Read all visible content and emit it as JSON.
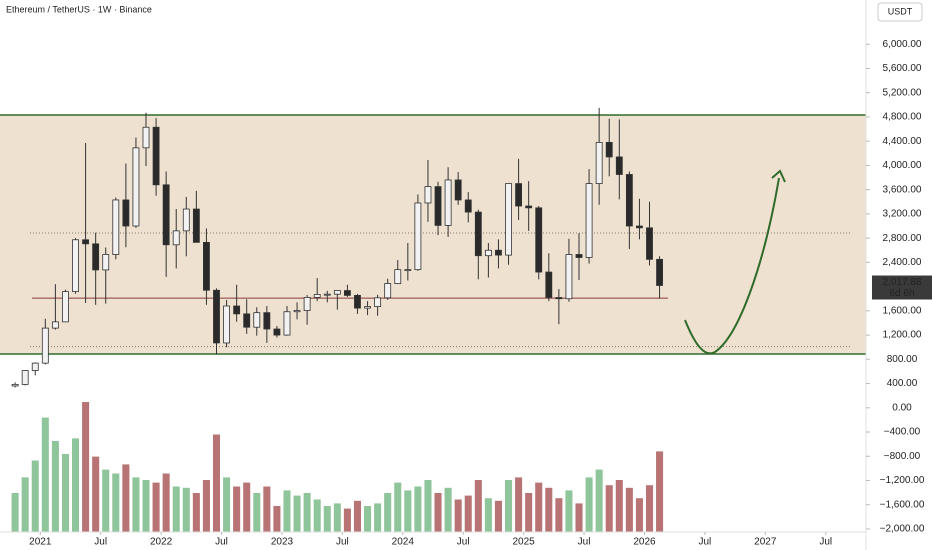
{
  "chart_data": {
    "type": "candlestick",
    "title": "Ethereum / TetherUS · 1W · Binance",
    "currency": "USDT",
    "last_price": {
      "value": 2017.88,
      "label": "2,017.88"
    },
    "countdown": "6d 6h",
    "up_color": "#f2f2f2",
    "down_color": "#2a2a2a",
    "volume_up_color": "#8fc59a",
    "volume_down_color": "#b87474",
    "channel": [
      888,
      4832
    ],
    "channel_color": "#2f6b2a",
    "levels": [
      2885,
      1010
    ],
    "pivot": 1810,
    "x": [
      "2020-10",
      "2020-11",
      "2020-12",
      "2021-01",
      "2021-02",
      "2021-03",
      "2021-04",
      "2021-05",
      "2021-06",
      "2021-07",
      "2021-08",
      "2021-09",
      "2021-10",
      "2021-11",
      "2021-12",
      "2022-01",
      "2022-02",
      "2022-03",
      "2022-04",
      "2022-05",
      "2022-06",
      "2022-07",
      "2022-08",
      "2022-09",
      "2022-10",
      "2022-11",
      "2022-12",
      "2023-01",
      "2023-02",
      "2023-03",
      "2023-04",
      "2023-05",
      "2023-06",
      "2023-07",
      "2023-08",
      "2023-09",
      "2023-10",
      "2023-11",
      "2023-12",
      "2024-01",
      "2024-02",
      "2024-03",
      "2024-04",
      "2024-05",
      "2024-06",
      "2024-07",
      "2024-08",
      "2024-09",
      "2024-10",
      "2024-11",
      "2024-12",
      "2025-01",
      "2025-02",
      "2025-03",
      "2025-04",
      "2025-05",
      "2025-06",
      "2025-07",
      "2025-08",
      "2025-09",
      "2025-10",
      "2025-11",
      "2025-12",
      "2026-01",
      "2026-02"
    ],
    "open": [
      360,
      386,
      615,
      737,
      1315,
      1418,
      1918,
      2773,
      2706,
      2275,
      2530,
      3430,
      3000,
      4290,
      4630,
      3680,
      2690,
      2920,
      3280,
      2730,
      1940,
      1070,
      1680,
      1550,
      1330,
      1570,
      1300,
      1200,
      1585,
      1605,
      1822,
      1870,
      1875,
      1935,
      1855,
      1645,
      1670,
      1815,
      2050,
      2280,
      2280,
      3380,
      3650,
      3010,
      3760,
      3430,
      3230,
      2510,
      2600,
      2520,
      3700,
      3330,
      3300,
      2240,
      1820,
      1800,
      2530,
      2480,
      3700,
      4380,
      4140,
      3850,
      3000,
      2970,
      2450
    ],
    "high": [
      420,
      620,
      750,
      1470,
      2040,
      1950,
      2800,
      4370,
      2890,
      2645,
      3470,
      4030,
      4460,
      4870,
      4780,
      3900,
      3280,
      3480,
      3580,
      2960,
      1970,
      1780,
      2030,
      1790,
      1660,
      1680,
      1350,
      1680,
      1740,
      1860,
      2140,
      1930,
      1930,
      2030,
      1880,
      1760,
      1865,
      2130,
      2440,
      2720,
      3520,
      4090,
      3730,
      3970,
      3890,
      3560,
      3270,
      2720,
      2780,
      3680,
      4110,
      3740,
      3330,
      2550,
      1960,
      2790,
      2880,
      3940,
      4950,
      4770,
      4760,
      3900,
      3450,
      3400,
      2500
    ],
    "low": [
      335,
      370,
      535,
      715,
      1290,
      1440,
      1880,
      1730,
      1700,
      1720,
      2450,
      2650,
      2970,
      3990,
      3500,
      2160,
      2300,
      2500,
      2760,
      1700,
      880,
      1000,
      1420,
      1220,
      1190,
      1070,
      1160,
      1190,
      1460,
      1370,
      1760,
      1740,
      1620,
      1830,
      1550,
      1530,
      1520,
      1780,
      2040,
      2100,
      2260,
      3070,
      2850,
      2820,
      3350,
      3060,
      2120,
      2150,
      2300,
      2360,
      3100,
      2920,
      2120,
      1760,
      1380,
      1750,
      2110,
      2380,
      3350,
      3820,
      3440,
      2620,
      2780,
      2350,
      1800
    ],
    "close": [
      386,
      615,
      737,
      1315,
      1418,
      1918,
      2773,
      2706,
      2275,
      2530,
      3430,
      3000,
      4290,
      4630,
      3680,
      2690,
      2920,
      3280,
      2730,
      1940,
      1070,
      1680,
      1550,
      1330,
      1570,
      1300,
      1200,
      1585,
      1605,
      1822,
      1870,
      1875,
      1935,
      1855,
      1645,
      1670,
      1815,
      2050,
      2280,
      2280,
      3380,
      3650,
      3010,
      3760,
      3430,
      3230,
      2510,
      2600,
      2520,
      3700,
      3330,
      3300,
      2240,
      1820,
      1800,
      2530,
      2480,
      3700,
      4380,
      4140,
      3850,
      3000,
      2970,
      2450,
      2018
    ],
    "volume": [
      30,
      42,
      55,
      88,
      70,
      60,
      72,
      100,
      58,
      48,
      45,
      52,
      42,
      40,
      38,
      45,
      35,
      34,
      30,
      40,
      75,
      42,
      35,
      38,
      30,
      35,
      20,
      32,
      28,
      30,
      25,
      20,
      22,
      18,
      24,
      20,
      22,
      30,
      38,
      32,
      35,
      40,
      30,
      34,
      25,
      28,
      40,
      26,
      24,
      40,
      42,
      30,
      38,
      34,
      26,
      32,
      22,
      42,
      48,
      36,
      40,
      34,
      26,
      36,
      62
    ],
    "volume_lim": [
      0,
      100
    ],
    "xlim": [
      "2020-09",
      "2027-11"
    ],
    "xticks": [
      {
        "value": "2021-01",
        "label": "2021"
      },
      {
        "value": "2021-07",
        "label": "Jul"
      },
      {
        "value": "2022-01",
        "label": "2022"
      },
      {
        "value": "2022-07",
        "label": "Jul"
      },
      {
        "value": "2023-01",
        "label": "2023"
      },
      {
        "value": "2023-07",
        "label": "Jul"
      },
      {
        "value": "2024-01",
        "label": "2024"
      },
      {
        "value": "2024-07",
        "label": "Jul"
      },
      {
        "value": "2025-01",
        "label": "2025"
      },
      {
        "value": "2025-07",
        "label": "Jul"
      },
      {
        "value": "2026-01",
        "label": "2026"
      },
      {
        "value": "2026-07",
        "label": "Jul"
      },
      {
        "value": "2027-01",
        "label": "2027"
      },
      {
        "value": "2027-07",
        "label": "Jul"
      }
    ],
    "ylim": [
      -2050,
      6730
    ],
    "yticks": [
      {
        "value": 6000,
        "label": "6,000.00"
      },
      {
        "value": 5600,
        "label": "5,600.00"
      },
      {
        "value": 5200,
        "label": "5,200.00"
      },
      {
        "value": 4800,
        "label": "4,800.00"
      },
      {
        "value": 4400,
        "label": "4,400.00"
      },
      {
        "value": 4000,
        "label": "4,000.00"
      },
      {
        "value": 3600,
        "label": "3,600.00"
      },
      {
        "value": 3200,
        "label": "3,200.00"
      },
      {
        "value": 2800,
        "label": "2,800.00"
      },
      {
        "value": 2400,
        "label": "2,400.00"
      },
      {
        "value": 1600,
        "label": "1,600.00"
      },
      {
        "value": 1200,
        "label": "1,200.00"
      },
      {
        "value": 800,
        "label": "800.00"
      },
      {
        "value": 400,
        "label": "400.00"
      },
      {
        "value": 0,
        "label": "0.00"
      },
      {
        "value": -400,
        "label": "−400.00"
      },
      {
        "value": -800,
        "label": "−800.00"
      },
      {
        "value": -1200,
        "label": "−1,200.00"
      },
      {
        "value": -1600,
        "label": "−1,600.00"
      },
      {
        "value": -2000,
        "label": "−2,000.00"
      }
    ]
  }
}
